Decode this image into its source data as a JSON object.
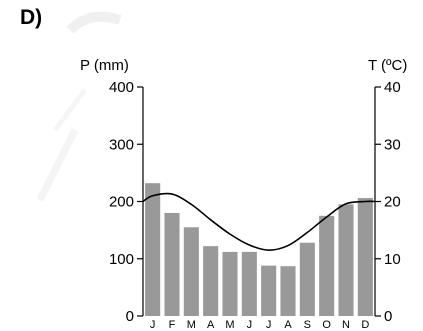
{
  "panel_label": "D)",
  "chart_data": {
    "type": "bar",
    "subtype": "climograph",
    "categories": [
      "J",
      "F",
      "M",
      "A",
      "M",
      "J",
      "J",
      "A",
      "S",
      "O",
      "N",
      "D"
    ],
    "series": [
      {
        "name": "P (mm)",
        "kind": "bar",
        "axis": "left",
        "values": [
          232,
          180,
          155,
          122,
          112,
          112,
          88,
          87,
          128,
          175,
          195,
          206
        ]
      },
      {
        "name": "T (ºC)",
        "kind": "line",
        "axis": "right",
        "values": [
          21.0,
          21.3,
          19.5,
          16.8,
          14.3,
          12.4,
          11.5,
          12.3,
          14.6,
          17.3,
          19.6,
          20.0
        ]
      }
    ],
    "y_left_label": "P (mm)",
    "y_right_label": "T (ºC)",
    "ylim_left": [
      0,
      400
    ],
    "ylim_right": [
      0,
      40
    ],
    "yticks_left": [
      0,
      100,
      200,
      300,
      400
    ],
    "yticks_right": [
      0,
      10,
      20,
      30,
      40
    ],
    "bar_color": "#999999",
    "line_color": "#000000",
    "grid": false
  }
}
